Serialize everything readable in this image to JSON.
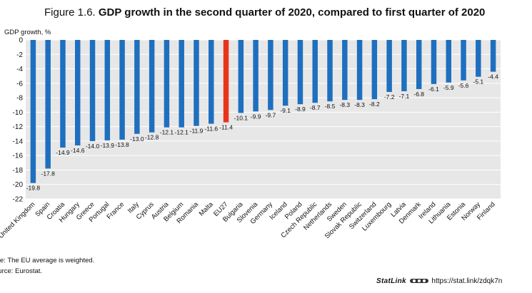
{
  "header": {
    "figure_label": "Figure 1.6.",
    "title": "GDP growth in the second quarter of 2020, compared to first quarter of 2020"
  },
  "footer": {
    "note": "ote: The EU average is weighted.",
    "source": "ource: Eurostat.",
    "statlink_brand": "StatLink",
    "statlink_url": "https://stat.link/zdqk7n"
  },
  "colors": {
    "bar": "#1f6fbf",
    "highlight": "#e8341c",
    "plot_bg": "#e7e7e7",
    "grid": "#ffffff"
  },
  "chart_data": {
    "type": "bar",
    "title": "GDP growth in the second quarter of 2020, compared to first quarter of 2020",
    "ylabel": "GDP growth, %",
    "xlabel": "",
    "ylim": [
      -22,
      0
    ],
    "yticks": [
      0,
      -2,
      -4,
      -6,
      -8,
      -10,
      -12,
      -14,
      -16,
      -18,
      -20,
      -22
    ],
    "grid": true,
    "highlight_category": "EU27",
    "categories": [
      "United Kingdom",
      "Spain",
      "Croatia",
      "Hungary",
      "Greece",
      "Portugal",
      "France",
      "Italy",
      "Cyprus",
      "Austria",
      "Belgium",
      "Romania",
      "Malta",
      "EU27",
      "Bulgaria",
      "Slovenia",
      "Germany",
      "Iceland",
      "Poland",
      "Czech Republic",
      "Netherlands",
      "Sweden",
      "Slovak Republic",
      "Switzerland",
      "Luxembourg",
      "Latvia",
      "Denmark",
      "Ireland",
      "Lithuania",
      "Estonia",
      "Norway",
      "Finland"
    ],
    "values": [
      -19.8,
      -17.8,
      -14.9,
      -14.6,
      -14.0,
      -13.9,
      -13.8,
      -13.0,
      -12.8,
      -12.1,
      -12.1,
      -11.9,
      -11.6,
      -11.4,
      -10.1,
      -9.9,
      -9.7,
      -9.1,
      -8.9,
      -8.7,
      -8.5,
      -8.3,
      -8.3,
      -8.2,
      -7.2,
      -7.1,
      -6.8,
      -6.1,
      -5.9,
      -5.6,
      -5.1,
      -4.4
    ],
    "data_labels": [
      "-19.8",
      "-17.8",
      "-14.9",
      "-14.6",
      "-14.0",
      "-13.9",
      "-13.8",
      "-13.0",
      "-12.8",
      "-12.1",
      "-12.1",
      "-11.9",
      "-11.6",
      "-11.4",
      "-10.1",
      "-9.9",
      "-9.7",
      "-9.1",
      "-8.9",
      "-8.7",
      "-8.5",
      "-8.3",
      "-8.3",
      "-8.2",
      "-7.2",
      "-7.1",
      "-6.8",
      "-6.1",
      "-5.9",
      "-5.6",
      "-5.1",
      "-4.4"
    ]
  }
}
